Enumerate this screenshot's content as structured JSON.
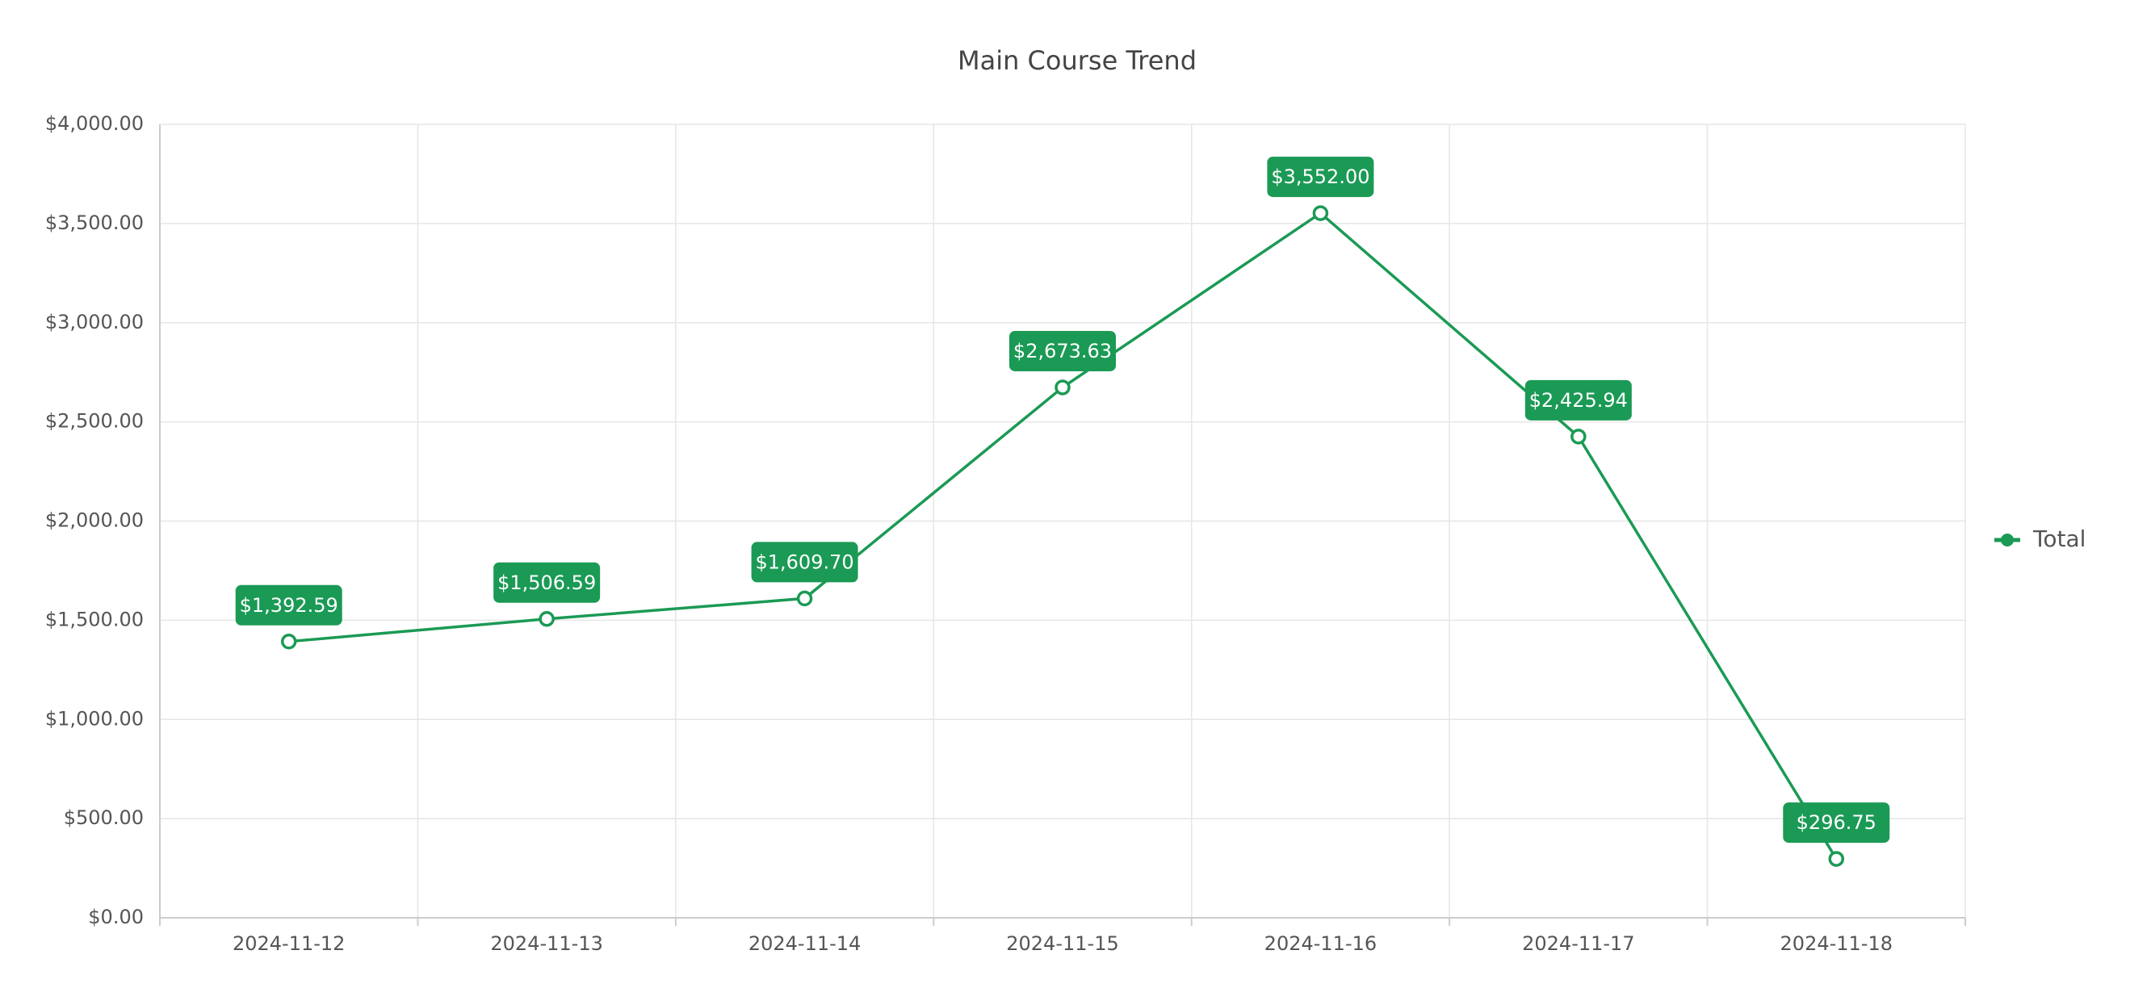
{
  "chart_data": {
    "type": "line",
    "title": "Main Course Trend",
    "categories": [
      "2024-11-12",
      "2024-11-13",
      "2024-11-14",
      "2024-11-15",
      "2024-11-16",
      "2024-11-17",
      "2024-11-18"
    ],
    "series": [
      {
        "name": "Total",
        "color": "#1b9a55",
        "values": [
          1392.59,
          1506.59,
          1609.7,
          2673.63,
          3552.0,
          2425.94,
          296.75
        ],
        "value_labels": [
          "$1,392.59",
          "$1,506.59",
          "$1,609.70",
          "$2,673.63",
          "$3,552.00",
          "$2,425.94",
          "$296.75"
        ]
      }
    ],
    "ylim": [
      0,
      4000
    ],
    "yticks": [
      {
        "value": 0,
        "label": "$0.00"
      },
      {
        "value": 500,
        "label": "$500.00"
      },
      {
        "value": 1000,
        "label": "$1,000.00"
      },
      {
        "value": 1500,
        "label": "$1,500.00"
      },
      {
        "value": 2000,
        "label": "$2,000.00"
      },
      {
        "value": 2500,
        "label": "$2,500.00"
      },
      {
        "value": 3000,
        "label": "$3,000.00"
      },
      {
        "value": 3500,
        "label": "$3,500.00"
      },
      {
        "value": 4000,
        "label": "$4,000.00"
      }
    ],
    "grid": true,
    "legend": "right"
  }
}
